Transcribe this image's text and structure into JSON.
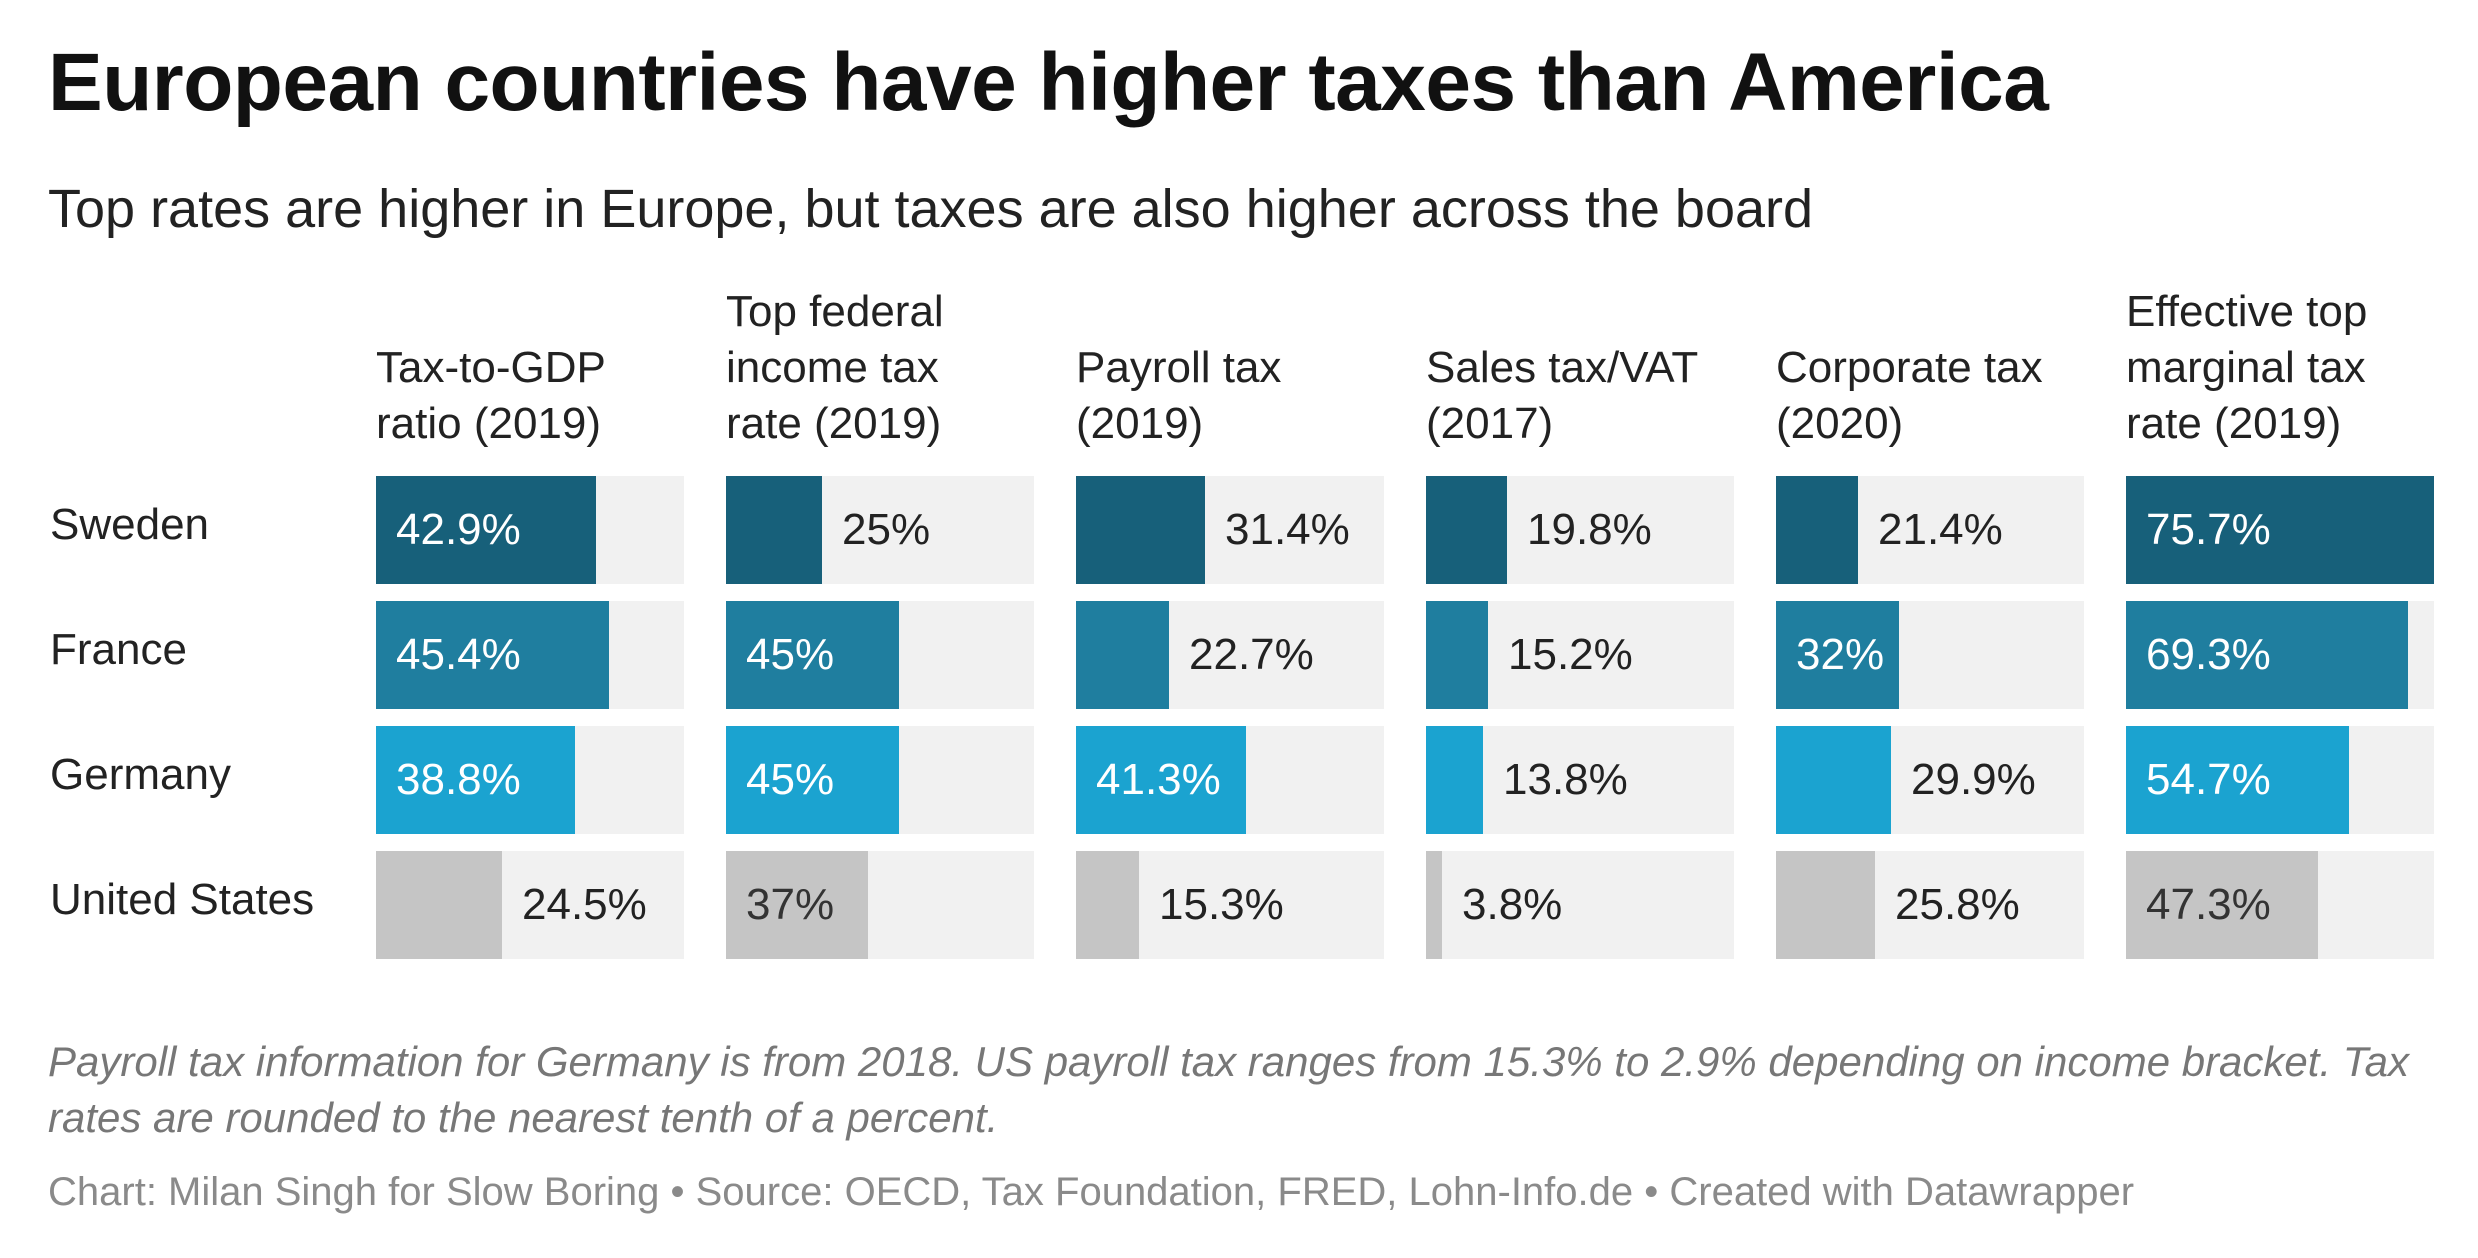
{
  "title": "European countries have higher taxes than America",
  "subtitle": "Top rates are higher in Europe, but taxes are also higher across the board",
  "note": "Payroll tax information for Germany is from 2018. US payroll tax ranges from 15.3% to 2.9% depending on income bracket. Tax rates are rounded to the nearest tenth of a percent.",
  "credit": "Chart: Milan Singh for Slow Boring • Source: OECD, Tax Foundation, FRED, Lohn-Info.de • Created with Datawrapper",
  "colors": {
    "Sweden": "#17607a",
    "France": "#1f7e9f",
    "Germany": "#1ba3d0",
    "United States": "#c5c5c5",
    "cell_bg": "#f1f1f1"
  },
  "chart_data": {
    "type": "table",
    "title": "European countries have higher taxes than America",
    "rows": [
      "Sweden",
      "France",
      "Germany",
      "United States"
    ],
    "columns": [
      {
        "label": "Tax-to-GDP\nratio (2019)",
        "max": 60,
        "values": [
          42.9,
          45.4,
          38.8,
          24.5
        ],
        "labels": [
          "42.9%",
          "45.4%",
          "38.8%",
          "24.5%"
        ]
      },
      {
        "label": "Top federal\nincome tax\nrate (2019)",
        "max": 80,
        "values": [
          25,
          45,
          45,
          37
        ],
        "labels": [
          "25%",
          "45%",
          "45%",
          "37%"
        ]
      },
      {
        "label": "Payroll tax\n(2019)",
        "max": 75,
        "values": [
          31.4,
          22.7,
          41.3,
          15.3
        ],
        "labels": [
          "31.4%",
          "22.7%",
          "41.3%",
          "15.3%"
        ]
      },
      {
        "label": "Sales tax/VAT\n(2017)",
        "max": 75,
        "values": [
          19.8,
          15.2,
          13.8,
          3.8
        ],
        "labels": [
          "19.8%",
          "15.2%",
          "13.8%",
          "3.8%"
        ]
      },
      {
        "label": "Corporate tax\n(2020)",
        "max": 80,
        "values": [
          21.4,
          32,
          29.9,
          25.8
        ],
        "labels": [
          "21.4%",
          "32%",
          "29.9%",
          "25.8%"
        ]
      },
      {
        "label": "Effective top\nmarginal tax\nrate (2019)",
        "max": 75.7,
        "values": [
          75.7,
          69.3,
          54.7,
          47.3
        ],
        "labels": [
          "75.7%",
          "69.3%",
          "54.7%",
          "47.3%"
        ]
      }
    ]
  }
}
